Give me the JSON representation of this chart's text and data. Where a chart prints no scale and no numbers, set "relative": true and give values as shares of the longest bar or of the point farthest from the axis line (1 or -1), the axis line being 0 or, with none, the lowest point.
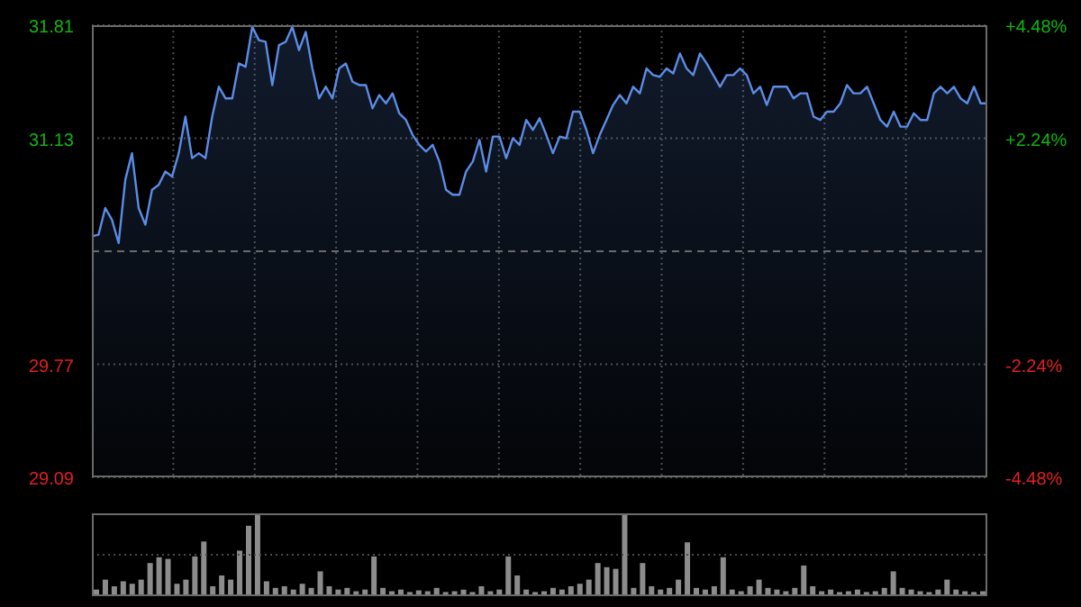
{
  "chart_data": [
    {
      "type": "area",
      "categories": [
        null,
        null,
        null,
        null,
        null,
        null,
        null,
        null,
        null,
        null,
        null,
        null,
        null,
        null,
        null,
        null,
        null,
        null,
        null,
        null,
        null,
        null,
        null,
        null,
        null,
        null,
        null,
        null,
        null,
        null,
        null,
        null,
        null,
        null,
        null,
        null,
        null,
        null,
        null,
        null,
        null,
        null,
        null,
        null,
        null,
        null,
        null,
        null,
        null,
        null,
        null,
        null,
        null,
        null,
        null,
        null,
        null,
        null,
        null,
        null,
        null,
        null,
        null,
        null,
        null,
        null,
        null,
        null,
        null,
        null,
        null,
        null,
        null,
        null,
        null,
        null,
        null,
        null,
        null,
        null,
        null,
        null,
        null,
        null,
        null,
        null,
        null,
        null,
        null,
        null,
        null,
        null,
        null,
        null,
        null,
        null,
        null,
        null,
        null,
        null,
        null,
        null,
        null,
        null,
        null,
        null,
        null,
        null,
        null,
        null,
        null,
        null,
        null,
        null,
        null,
        null,
        null,
        null,
        null,
        null,
        null,
        null,
        null,
        null,
        null,
        null,
        null,
        null,
        null,
        null,
        null,
        null,
        null,
        null,
        null
      ],
      "series": [
        {
          "color": "#5b8de6",
          "values": [
            30.54,
            30.55,
            30.71,
            30.64,
            30.5,
            30.88,
            31.04,
            30.71,
            30.61,
            30.82,
            30.85,
            30.93,
            30.9,
            31.04,
            31.26,
            31.01,
            31.04,
            31.01,
            31.26,
            31.44,
            31.37,
            31.37,
            31.58,
            31.56,
            31.8,
            31.72,
            31.71,
            31.45,
            31.69,
            31.71,
            31.8,
            31.66,
            31.77,
            31.55,
            31.37,
            31.44,
            31.37,
            31.55,
            31.58,
            31.47,
            31.45,
            31.45,
            31.31,
            31.39,
            31.34,
            31.4,
            31.28,
            31.24,
            31.15,
            31.09,
            31.05,
            31.09,
            30.99,
            30.82,
            30.79,
            30.79,
            30.93,
            30.99,
            31.12,
            30.93,
            31.14,
            31.14,
            31.01,
            31.13,
            31.09,
            31.24,
            31.18,
            31.25,
            31.15,
            31.04,
            31.14,
            31.13,
            31.29,
            31.29,
            31.18,
            31.04,
            31.15,
            31.24,
            31.33,
            31.39,
            31.34,
            31.44,
            31.4,
            31.55,
            31.51,
            31.5,
            31.55,
            31.52,
            31.64,
            31.55,
            31.51,
            31.64,
            31.58,
            31.51,
            31.44,
            31.51,
            31.51,
            31.55,
            31.51,
            31.4,
            31.44,
            31.33,
            31.44,
            31.44,
            31.44,
            31.37,
            31.4,
            31.4,
            31.26,
            31.24,
            31.29,
            31.29,
            31.34,
            31.45,
            31.4,
            31.4,
            31.44,
            31.34,
            31.24,
            31.2,
            31.29,
            31.2,
            31.2,
            31.28,
            31.24,
            31.24,
            31.4,
            31.44,
            31.4,
            31.44,
            31.37,
            31.34,
            31.44,
            31.34,
            31.34
          ]
        }
      ],
      "ylim": [
        29.09,
        31.81
      ],
      "yticks": [
        31.81,
        31.13,
        29.77,
        29.09
      ],
      "y2lim": [
        -4.48,
        4.48
      ],
      "y2ticks": [
        {
          "value": 4.48,
          "label": "+4.48%"
        },
        {
          "value": 2.24,
          "label": "+2.24%"
        },
        {
          "value": -2.24,
          "label": "-2.24%"
        },
        {
          "value": -4.48,
          "label": "-4.48%"
        }
      ],
      "ref_lines": [
        {
          "axis": "y",
          "value": 30.45,
          "line_style": "dashed",
          "color": "#6a6a6a"
        }
      ],
      "grid": true,
      "tick_labels": "y"
    },
    {
      "type": "bar",
      "relative": true,
      "ref_lines": [
        {
          "axis": "y",
          "value": 0.5,
          "line_style": "dotted",
          "color": "#4a4a4a"
        }
      ],
      "categories": [
        null,
        null,
        null,
        null,
        null,
        null,
        null,
        null,
        null,
        null,
        null,
        null,
        null,
        null,
        null,
        null,
        null,
        null,
        null,
        null,
        null,
        null,
        null,
        null,
        null,
        null,
        null,
        null,
        null,
        null,
        null,
        null,
        null,
        null,
        null,
        null,
        null,
        null,
        null,
        null,
        null,
        null,
        null,
        null,
        null,
        null,
        null,
        null,
        null,
        null,
        null,
        null,
        null,
        null,
        null,
        null,
        null,
        null,
        null,
        null,
        null,
        null,
        null,
        null,
        null,
        null,
        null,
        null,
        null,
        null,
        null,
        null,
        null,
        null,
        null,
        null,
        null,
        null,
        null,
        null,
        null,
        null,
        null,
        null,
        null,
        null,
        null,
        null,
        null,
        null,
        null,
        null,
        null,
        null,
        null,
        null,
        null,
        null,
        null,
        null
      ],
      "color": "#8c8c8c",
      "values": [
        0.08,
        0.2,
        0.12,
        0.18,
        0.15,
        0.2,
        0.4,
        0.47,
        0.45,
        0.15,
        0.2,
        0.48,
        0.66,
        0.12,
        0.25,
        0.2,
        0.55,
        0.85,
        1.0,
        0.18,
        0.1,
        0.12,
        0.08,
        0.15,
        0.1,
        0.3,
        0.12,
        0.08,
        0.1,
        0.06,
        0.08,
        0.48,
        0.1,
        0.06,
        0.08,
        0.05,
        0.07,
        0.06,
        0.1,
        0.05,
        0.06,
        0.08,
        0.05,
        0.12,
        0.06,
        0.08,
        0.48,
        0.25,
        0.08,
        0.05,
        0.06,
        0.1,
        0.08,
        0.12,
        0.15,
        0.2,
        0.4,
        0.35,
        0.33,
        1.0,
        0.1,
        0.4,
        0.12,
        0.08,
        0.1,
        0.2,
        0.65,
        0.1,
        0.08,
        0.12,
        0.47,
        0.08,
        0.06,
        0.12,
        0.2,
        0.1,
        0.08,
        0.06,
        0.1,
        0.37,
        0.12,
        0.06,
        0.08,
        0.05,
        0.06,
        0.08,
        0.05,
        0.06,
        0.1,
        0.3,
        0.1,
        0.08,
        0.06,
        0.05,
        0.08,
        0.2,
        0.08,
        0.06,
        0.05,
        0.06
      ]
    }
  ]
}
